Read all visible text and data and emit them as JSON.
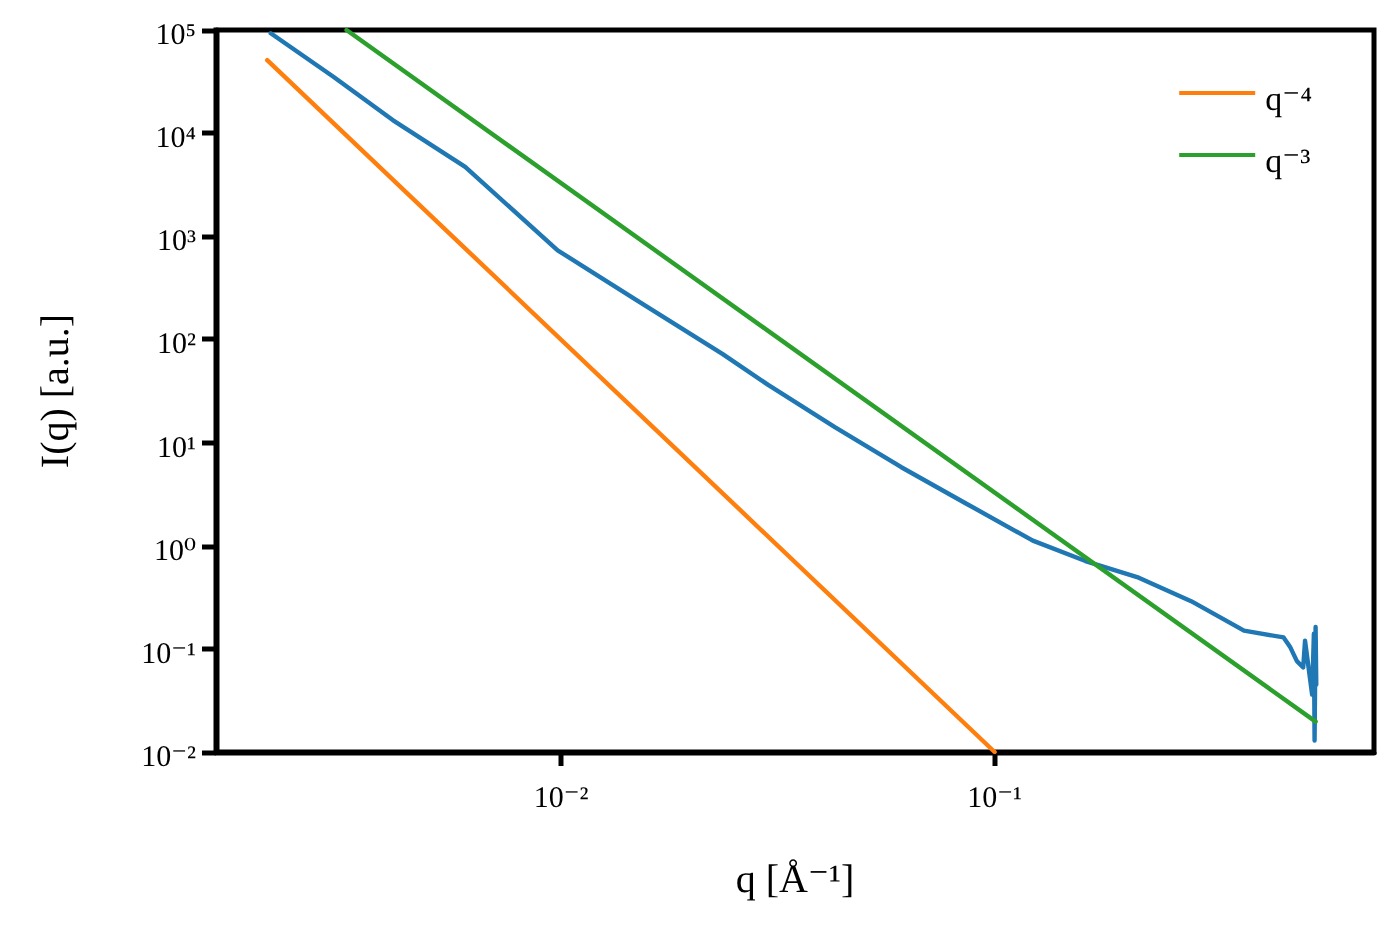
{
  "chart_data": {
    "type": "line",
    "xlabel": "q [Å⁻¹]",
    "ylabel": "I(q) [a.u.]",
    "log": "xy",
    "xlim": [
      0.0016,
      0.75
    ],
    "ylim": [
      0.01,
      100000
    ],
    "xticks": [
      {
        "value": 0.01,
        "label": "10⁻²"
      },
      {
        "value": 0.1,
        "label": "10⁻¹"
      }
    ],
    "yticks": [
      {
        "value": 0.01,
        "label": "10⁻²"
      },
      {
        "value": 0.1,
        "label": "10⁻¹"
      },
      {
        "value": 1,
        "label": "10⁰"
      },
      {
        "value": 10,
        "label": "10¹"
      },
      {
        "value": 100,
        "label": "10²"
      },
      {
        "value": 1000,
        "label": "10³"
      },
      {
        "value": 10000,
        "label": "10⁴"
      },
      {
        "value": 100000,
        "label": "10⁵"
      }
    ],
    "grid": false,
    "legend": "top right",
    "marker": "none",
    "line_style": "solid",
    "series": [
      {
        "color": "#1f77b4",
        "x": [
          0.00214,
          0.00299,
          0.00409,
          0.00601,
          0.00982,
          0.01496,
          0.0236,
          0.0301,
          0.0428,
          0.0608,
          0.0863,
          0.1225,
          0.162,
          0.215,
          0.284,
          0.376,
          0.464,
          0.48,
          0.498,
          0.515,
          0.52,
          0.54,
          0.545,
          0.547,
          0.55,
          0.552
        ],
        "values": [
          93000,
          35000,
          13400,
          4700,
          731,
          239,
          72,
          36,
          14.1,
          5.8,
          2.54,
          1.12,
          0.71,
          0.49,
          0.29,
          0.15,
          0.129,
          0.105,
          0.076,
          0.066,
          0.12,
          0.036,
          0.14,
          0.0129,
          0.163,
          0.045
        ]
      },
      {
        "name": "q⁻⁴",
        "color": "#ff7f0e",
        "x": [
          0.0021,
          0.1
        ],
        "values": [
          51000,
          0.01
        ]
      },
      {
        "name": "q⁻³",
        "color": "#2ca02c",
        "x": [
          0.0032,
          0.55
        ],
        "values": [
          100000,
          0.0197
        ]
      }
    ]
  }
}
